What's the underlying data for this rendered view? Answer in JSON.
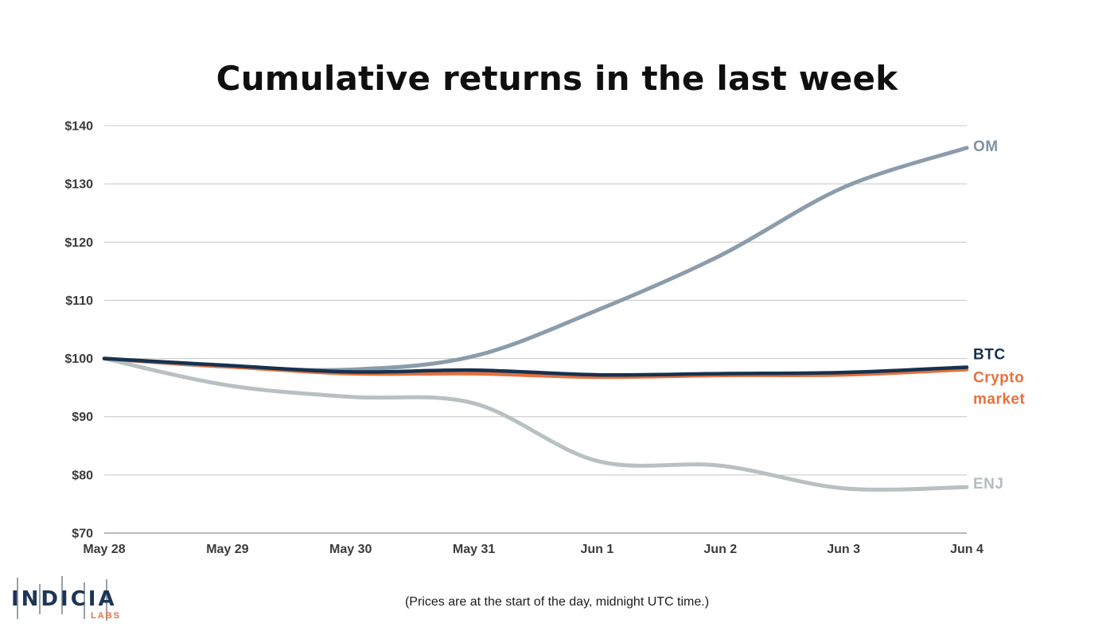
{
  "title": "Cumulative returns in the last week",
  "footnote": "(Prices are at the start of the day, midnight UTC time.)",
  "logo": {
    "name": "INDICIA",
    "sub": "LABS",
    "name_color": "#1d3557",
    "sub_color": "#e5713f"
  },
  "colors": {
    "gridline": "#cccccc",
    "baseline": "#a3a3a3",
    "tick_label": "#3b3b3b"
  },
  "chart_data": {
    "type": "line",
    "title": "Cumulative returns in the last week",
    "xlabel": "",
    "ylabel": "",
    "x_categories": [
      "May 28",
      "May 29",
      "May 30",
      "May 31",
      "Jun 1",
      "Jun 2",
      "Jun 3",
      "Jun 4"
    ],
    "ylim": [
      70,
      140
    ],
    "ytick_step": 10,
    "ytick_prefix": "$",
    "grid": "horizontal",
    "legend_position": "right-end-labels",
    "series": [
      {
        "name": "OM",
        "label": "OM",
        "color": "#8b9cab",
        "label_color": "#7f93a2",
        "width": 5,
        "values": [
          100,
          98.6,
          98.1,
          100.4,
          108.3,
          117.7,
          129.4,
          136.2
        ],
        "draw": 1,
        "label_dy": 4,
        "wrap_label": false
      },
      {
        "name": "BTC",
        "label": "BTC",
        "color": "#16324f",
        "label_color": "#16324f",
        "width": 4.5,
        "values": [
          100,
          98.8,
          97.7,
          98.0,
          97.2,
          97.4,
          97.6,
          98.5
        ],
        "draw": 4,
        "label_dy": -10,
        "wrap_label": false
      },
      {
        "name": "Crypto market",
        "label": "Crypto market",
        "color": "#e5713f",
        "label_color": "#e5713f",
        "width": 4.5,
        "values": [
          100,
          98.6,
          97.4,
          97.4,
          96.8,
          97.1,
          97.2,
          98.1
        ],
        "draw": 3,
        "label_dy": 16,
        "wrap_label": true
      },
      {
        "name": "ENJ",
        "label": "ENJ",
        "color": "#b8c0c2",
        "label_color": "#b4bdbf",
        "width": 5,
        "values": [
          100,
          95.4,
          93.4,
          92.3,
          82.4,
          81.6,
          77.7,
          77.9
        ],
        "draw": 2,
        "label_dy": 2,
        "wrap_label": false
      }
    ]
  }
}
